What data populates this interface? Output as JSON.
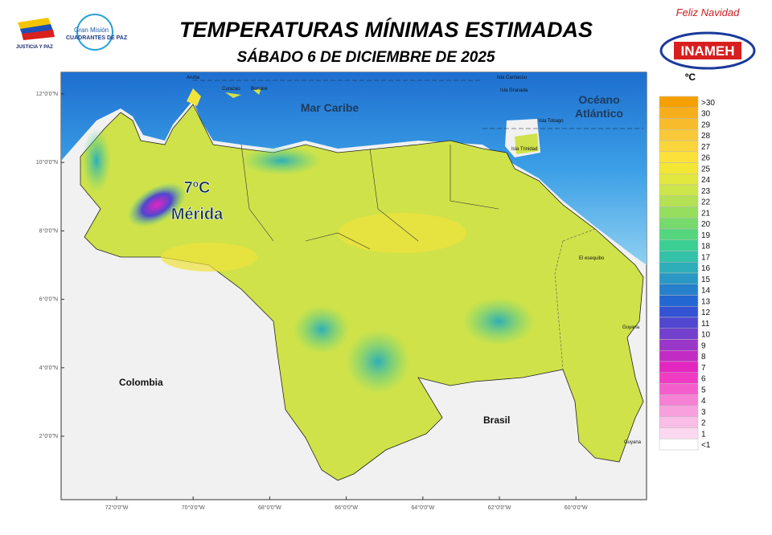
{
  "header": {
    "title": "TEMPERATURAS MÍNIMAS ESTIMADAS",
    "subtitle": "SÁBADO 6 DE DICIEMBRE DE 2025",
    "logo_left": "JUSTICIA Y PAZ",
    "logo_mision": "Gran Misión",
    "logo_cuadrantes": "CUADRANTES DE PAZ",
    "greeting": "Feliz Navidad",
    "agency": "INAMEH"
  },
  "map": {
    "lat_labels": [
      "12°0'0\"N",
      "10°0'0\"N",
      "8°0'0\"N",
      "6°0'0\"N",
      "4°0'0\"N",
      "2°0'0\"N"
    ],
    "lon_labels": [
      "72°0'0\"W",
      "70°0'0\"W",
      "68°0'0\"W",
      "66°0'0\"W",
      "64°0'0\"W",
      "62°0'0\"W",
      "60°0'0\"W"
    ],
    "places": {
      "aruba": "Aruba",
      "curazao": "Curazao",
      "bonaire": "Bonaire",
      "carriacou": "Isla Carriacou",
      "granada": "Isla Granada",
      "tobago": "Isla Tobago",
      "trinidad": "Isla Trinidad",
      "mar": "Mar Caribe",
      "oceano": "Océano",
      "atlantico": "Atlántico",
      "colombia": "Colombia",
      "brasil": "Brasil",
      "guyana1": "Guyana",
      "guyana2": "Guyana",
      "esequibo": "El esequibo"
    },
    "highlight": {
      "temp": "7ºC",
      "city": "Mérida"
    }
  },
  "legend": {
    "unit": "ºC",
    "items": [
      {
        "label": ">30",
        "color": "#f5a000"
      },
      {
        "label": "30",
        "color": "#f7ae1c"
      },
      {
        "label": "29",
        "color": "#f8bb2c"
      },
      {
        "label": "28",
        "color": "#f9c93a"
      },
      {
        "label": "27",
        "color": "#fad53c"
      },
      {
        "label": "26",
        "color": "#fbe13a"
      },
      {
        "label": "25",
        "color": "#f4e635"
      },
      {
        "label": "24",
        "color": "#e3e83e"
      },
      {
        "label": "23",
        "color": "#cde64a"
      },
      {
        "label": "22",
        "color": "#b4e254"
      },
      {
        "label": "21",
        "color": "#96de5e"
      },
      {
        "label": "20",
        "color": "#76da6c"
      },
      {
        "label": "19",
        "color": "#55d67e"
      },
      {
        "label": "18",
        "color": "#3ccf93"
      },
      {
        "label": "17",
        "color": "#33c2a8"
      },
      {
        "label": "16",
        "color": "#2eaeb8"
      },
      {
        "label": "15",
        "color": "#2a98c4"
      },
      {
        "label": "14",
        "color": "#2680cc"
      },
      {
        "label": "13",
        "color": "#2367d2"
      },
      {
        "label": "12",
        "color": "#3352d4"
      },
      {
        "label": "11",
        "color": "#5046d0"
      },
      {
        "label": "10",
        "color": "#7240cc"
      },
      {
        "label": "9",
        "color": "#9a36c8"
      },
      {
        "label": "8",
        "color": "#c22cc4"
      },
      {
        "label": "7",
        "color": "#e426c0"
      },
      {
        "label": "6",
        "color": "#f03cc4"
      },
      {
        "label": "5",
        "color": "#f45ecc"
      },
      {
        "label": "4",
        "color": "#f680d4"
      },
      {
        "label": "3",
        "color": "#f8a0de"
      },
      {
        "label": "2",
        "color": "#fabde8"
      },
      {
        "label": "1",
        "color": "#fcd8f0"
      },
      {
        "label": "<1",
        "color": "#ffffff"
      }
    ]
  }
}
